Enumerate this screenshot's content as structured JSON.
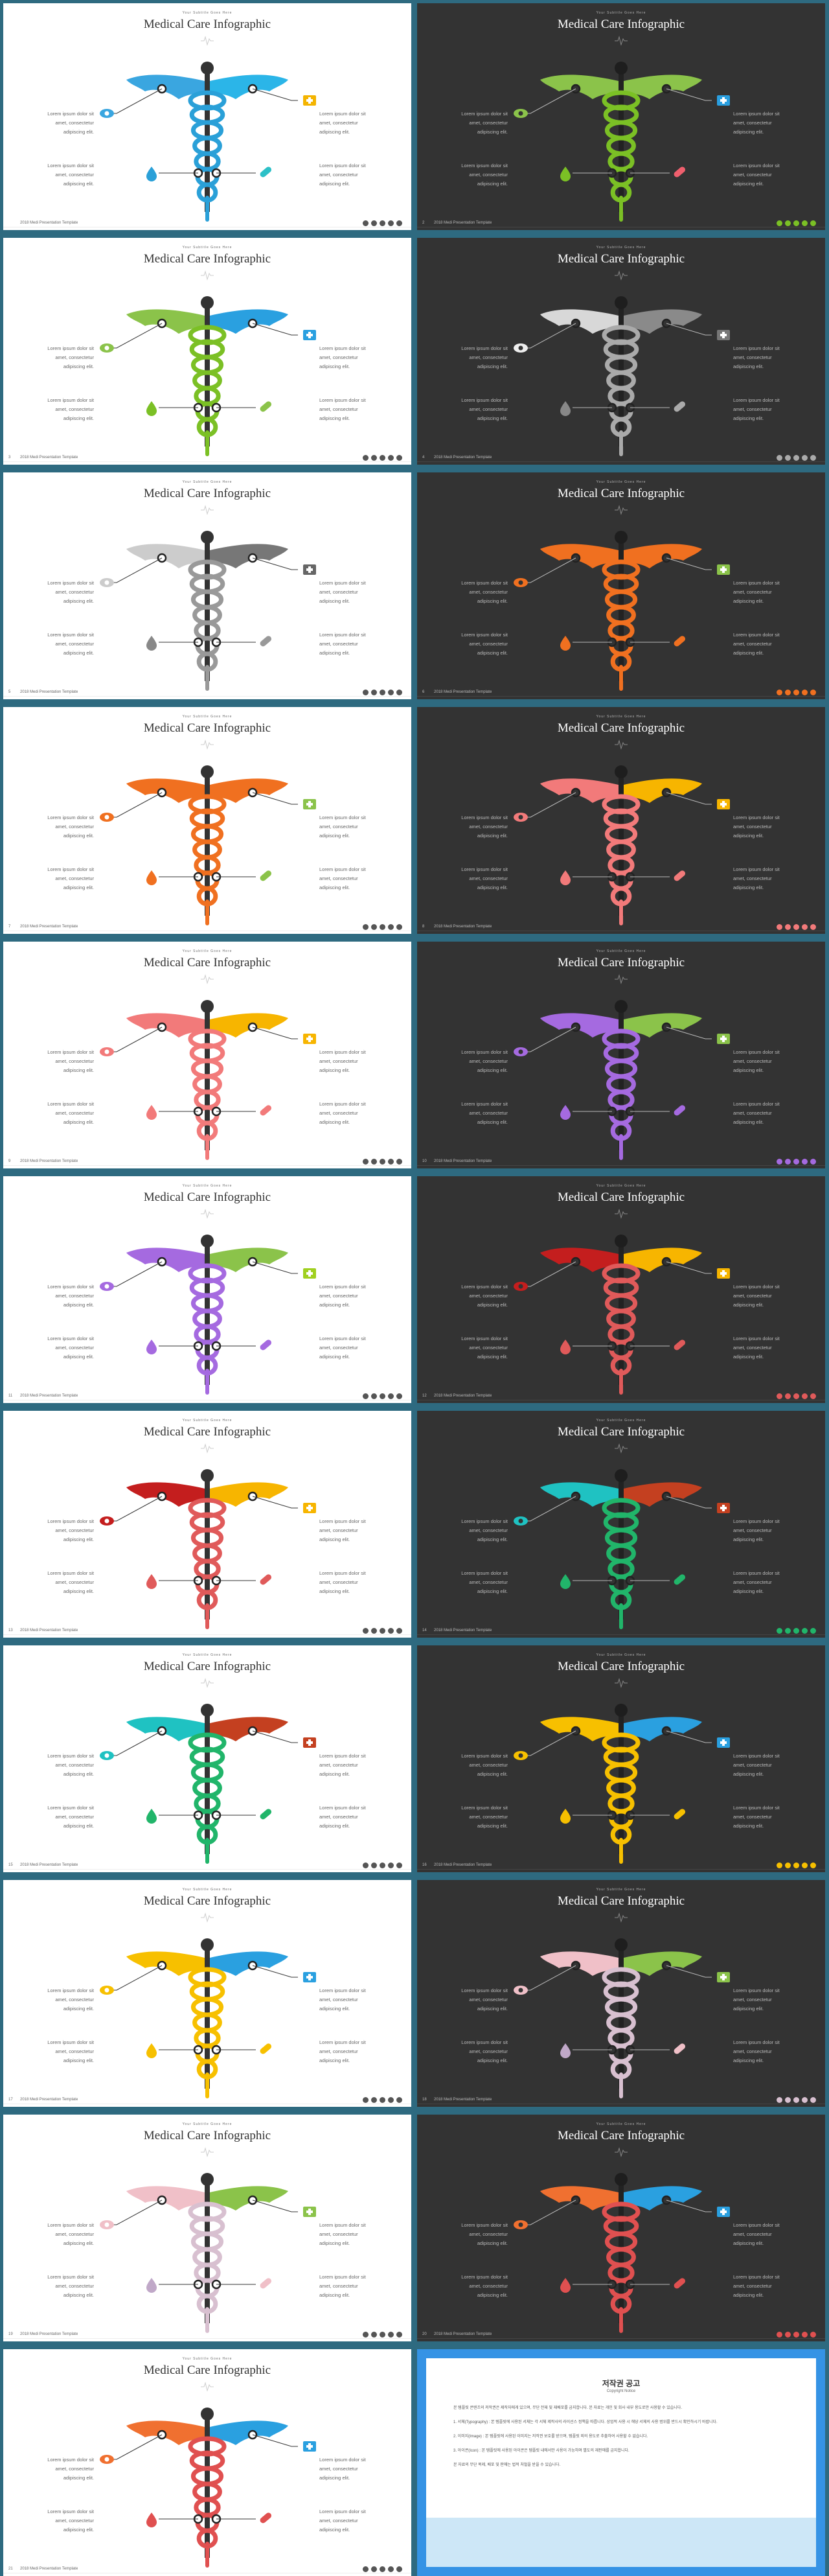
{
  "slide_common": {
    "subtitle": "Your Subtitle Goes Here",
    "title": "Medical Care Infographic",
    "body": "Lorem ipsum dolor sit amet, consectetur adipiscing elit.",
    "footer": "2018 Medi Presentation Template"
  },
  "slides": [
    {
      "page": "",
      "theme": "light",
      "colors": {
        "left": "#3aa6e0",
        "right": "#2bb5e8",
        "snake": "#2aa0d8",
        "eye": "#3aa6e0",
        "aid": "#f4b400",
        "drop": "#2aa0d8",
        "pill": "#2cc0c7"
      }
    },
    {
      "page": "2",
      "theme": "dark",
      "colors": {
        "left": "#8bc34a",
        "right": "#8bc34a",
        "snake": "#7bc025",
        "eye": "#8bc34a",
        "aid": "#2a9fe0",
        "drop": "#7bc025",
        "pill": "#ef5f6d"
      }
    },
    {
      "page": "3",
      "theme": "light",
      "colors": {
        "left": "#8bc34a",
        "right": "#2aa0e0",
        "snake": "#7bc025",
        "eye": "#8bc34a",
        "aid": "#2aa0e0",
        "drop": "#7bc025",
        "pill": "#8bc34a"
      }
    },
    {
      "page": "4",
      "theme": "dark",
      "colors": {
        "left": "#d8d8d8",
        "right": "#8a8a8a",
        "snake": "#aaaaaa",
        "eye": "#eeeeee",
        "aid": "#777777",
        "drop": "#888888",
        "pill": "#aaaaaa"
      }
    },
    {
      "page": "5",
      "theme": "light",
      "colors": {
        "left": "#cccccc",
        "right": "#777777",
        "snake": "#999999",
        "eye": "#cccccc",
        "aid": "#666666",
        "drop": "#888888",
        "pill": "#999999"
      }
    },
    {
      "page": "6",
      "theme": "dark",
      "colors": {
        "left": "#f07020",
        "right": "#f07020",
        "snake": "#f07020",
        "eye": "#f07020",
        "aid": "#8bc34a",
        "drop": "#f07020",
        "pill": "#f07020"
      }
    },
    {
      "page": "7",
      "theme": "light",
      "colors": {
        "left": "#f07020",
        "right": "#f07020",
        "snake": "#f07020",
        "eye": "#f07020",
        "aid": "#8bc34a",
        "drop": "#f07020",
        "pill": "#8bc34a"
      }
    },
    {
      "page": "8",
      "theme": "dark",
      "colors": {
        "left": "#f27a7a",
        "right": "#f7b500",
        "snake": "#f27a7a",
        "eye": "#f27a7a",
        "aid": "#f7b500",
        "drop": "#f27a7a",
        "pill": "#f27a7a"
      }
    },
    {
      "page": "9",
      "theme": "light",
      "colors": {
        "left": "#f27a7a",
        "right": "#f7b500",
        "snake": "#f27a7a",
        "eye": "#f27a7a",
        "aid": "#f7b500",
        "drop": "#f27a7a",
        "pill": "#f27a7a"
      }
    },
    {
      "page": "10",
      "theme": "dark",
      "colors": {
        "left": "#a56ae0",
        "right": "#8bc34a",
        "snake": "#a56ae0",
        "eye": "#a56ae0",
        "aid": "#8bc34a",
        "drop": "#a56ae0",
        "pill": "#a56ae0"
      }
    },
    {
      "page": "11",
      "theme": "light",
      "colors": {
        "left": "#a56ae0",
        "right": "#8bc34a",
        "snake": "#a56ae0",
        "eye": "#a56ae0",
        "aid": "#a0d020",
        "drop": "#a56ae0",
        "pill": "#a56ae0"
      }
    },
    {
      "page": "12",
      "theme": "dark",
      "colors": {
        "left": "#c41e1e",
        "right": "#f7b500",
        "snake": "#e05a5a",
        "eye": "#c41e1e",
        "aid": "#f7b500",
        "drop": "#e05a5a",
        "pill": "#e05a5a"
      }
    },
    {
      "page": "13",
      "theme": "light",
      "colors": {
        "left": "#c41e1e",
        "right": "#f7b500",
        "snake": "#e05a5a",
        "eye": "#c41e1e",
        "aid": "#f7b500",
        "drop": "#e05a5a",
        "pill": "#e05a5a"
      }
    },
    {
      "page": "14",
      "theme": "dark",
      "colors": {
        "left": "#1fc2c2",
        "right": "#c44020",
        "snake": "#21b56a",
        "eye": "#1fc2c2",
        "aid": "#c44020",
        "drop": "#21b56a",
        "pill": "#21b56a"
      }
    },
    {
      "page": "15",
      "theme": "light",
      "colors": {
        "left": "#1fc2c2",
        "right": "#c44020",
        "snake": "#21b56a",
        "eye": "#1fc2c2",
        "aid": "#c44020",
        "drop": "#21b56a",
        "pill": "#21b56a"
      }
    },
    {
      "page": "16",
      "theme": "dark",
      "colors": {
        "left": "#f7c000",
        "right": "#2aa0e0",
        "snake": "#f7c000",
        "eye": "#f7c000",
        "aid": "#2aa0e0",
        "drop": "#f7c000",
        "pill": "#f7c000"
      }
    },
    {
      "page": "17",
      "theme": "light",
      "colors": {
        "left": "#f7c000",
        "right": "#2aa0e0",
        "snake": "#f7c000",
        "eye": "#f7c000",
        "aid": "#2aa0e0",
        "drop": "#f7c000",
        "pill": "#f7c000"
      }
    },
    {
      "page": "18",
      "theme": "dark",
      "colors": {
        "left": "#f0c0c8",
        "right": "#8bc34a",
        "snake": "#d8c0d0",
        "eye": "#f0c0c8",
        "aid": "#8bc34a",
        "drop": "#c0a8c8",
        "pill": "#f0c0c8"
      }
    },
    {
      "page": "19",
      "theme": "light",
      "colors": {
        "left": "#f0c0c8",
        "right": "#8bc34a",
        "snake": "#d8c0d0",
        "eye": "#f0c0c8",
        "aid": "#8bc34a",
        "drop": "#c0a8c8",
        "pill": "#f0c0c8"
      }
    },
    {
      "page": "20",
      "theme": "dark",
      "colors": {
        "left": "#f07030",
        "right": "#2aa0e0",
        "snake": "#e05050",
        "eye": "#f07030",
        "aid": "#2aa0e0",
        "drop": "#e05050",
        "pill": "#e05050"
      }
    },
    {
      "page": "21",
      "theme": "light",
      "colors": {
        "left": "#f07030",
        "right": "#2aa0e0",
        "snake": "#e05050",
        "eye": "#f07030",
        "aid": "#2aa0e0",
        "drop": "#e05050",
        "pill": "#e05050"
      }
    }
  ],
  "notice": {
    "title": "저작권 공고",
    "subtitle": "Copyright Notice",
    "paragraphs": [
      "본 템플릿 콘텐츠의 저작권은 제작자에게 있으며, 무단 전재 및 재배포를 금지합니다. 본 자료는 개인 및 회사 내부 용도로만 사용할 수 있습니다.",
      "1. 서체(Typography) : 본 템플릿에 사용된 서체는 각 서체 제작사의 라이선스 정책을 따릅니다. 상업적 사용 시 해당 서체의 사용 범위를 반드시 확인하시기 바랍니다.",
      "2. 이미지(Image) : 본 템플릿에 사용된 이미지는 저작권 보호를 받으며, 템플릿 외의 용도로 추출하여 사용할 수 없습니다.",
      "3. 아이콘(Icon) : 본 템플릿에 사용된 아이콘은 템플릿 내에서만 사용이 가능하며 별도의 재판매를 금지합니다.",
      "본 자료의 무단 복제, 배포 및 판매는 법적 처벌을 받을 수 있습니다."
    ]
  }
}
